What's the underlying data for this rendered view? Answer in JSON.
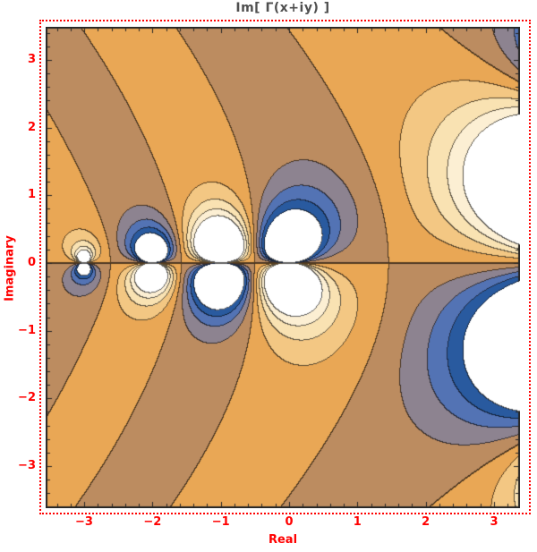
{
  "figure": {
    "title": "Im[ Γ(x+iy) ]",
    "title_color": "#4f4f4f",
    "border_color": "#ff0000",
    "background": "#ffffff"
  },
  "axes": {
    "xlabel": "Real",
    "ylabel": "Imaginary",
    "label_color": "#ff0000",
    "tick_label_color": "#ff0000",
    "frame_color": "#262626",
    "x_ticks": [
      {
        "value": -3,
        "label": "−3"
      },
      {
        "value": -2,
        "label": "−2"
      },
      {
        "value": -1,
        "label": "−1"
      },
      {
        "value": 0,
        "label": "0"
      },
      {
        "value": 1,
        "label": "1"
      },
      {
        "value": 2,
        "label": "2"
      },
      {
        "value": 3,
        "label": "3"
      }
    ],
    "y_ticks": [
      {
        "value": 3,
        "label": "3"
      },
      {
        "value": 2,
        "label": "2"
      },
      {
        "value": 1,
        "label": "1"
      },
      {
        "value": 0,
        "label": "0"
      },
      {
        "value": -1,
        "label": "−1"
      },
      {
        "value": -2,
        "label": "−2"
      },
      {
        "value": -3,
        "label": "−3"
      }
    ]
  },
  "chart_data": {
    "type": "heatmap",
    "subtype": "filled-contour",
    "title": "Im[ Γ(x+iy) ]",
    "function": "Im(Gamma(x + i*y))",
    "xlabel": "Real",
    "ylabel": "Imaginary",
    "x_range": [
      -3.564,
      3.38
    ],
    "y_range": [
      -3.621,
      3.489
    ],
    "levels": [
      -0.8,
      -0.6,
      -0.4,
      -0.2,
      0,
      0.2,
      0.4,
      0.6,
      0.8
    ],
    "band_colors": [
      "#295a9f",
      "#5373b4",
      "#8d8390",
      "#bc8c60",
      "#e9a755",
      "#f3c783",
      "#f9e2b2",
      "#fcefd3"
    ],
    "out_of_range_color": "#ffffff",
    "contour_line_color": "#000000",
    "contour_line_alpha": 0.62,
    "major_tick_step": 1,
    "minor_tick_step": 0.2,
    "grid": false,
    "legend": false,
    "poles_on_real_axis": [
      0,
      -1,
      -2,
      -3
    ]
  }
}
